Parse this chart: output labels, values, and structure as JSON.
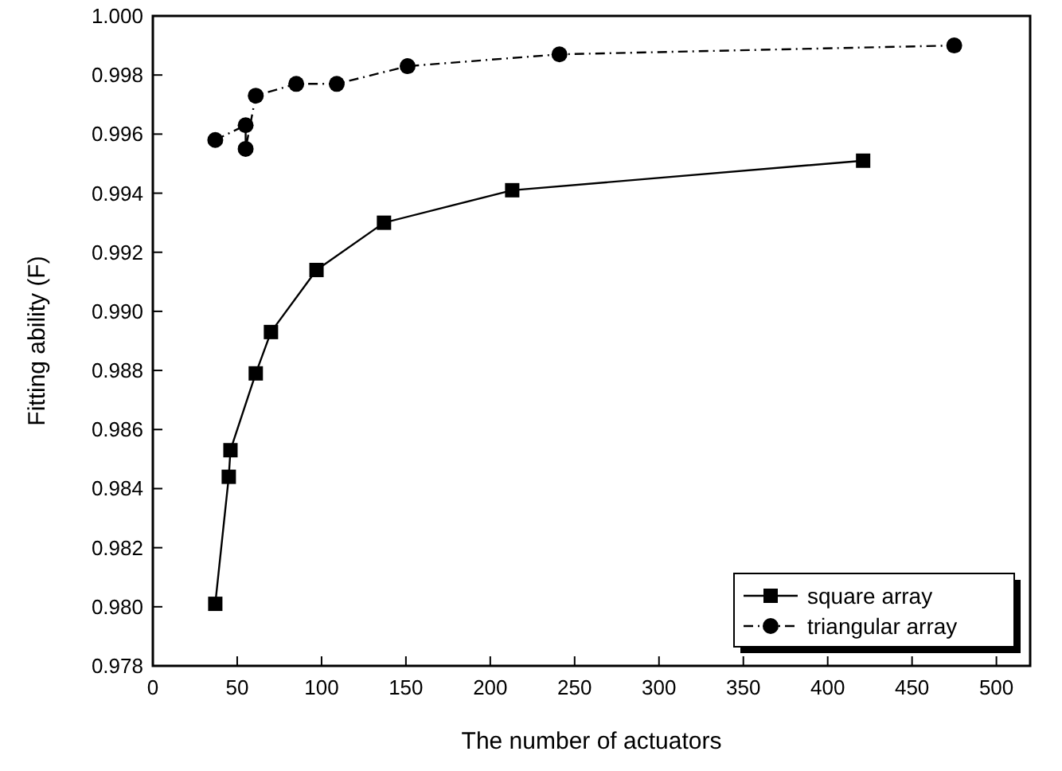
{
  "chart_data": {
    "type": "line",
    "xlabel": "The number of actuators",
    "ylabel": "Fitting ability (F)",
    "xlim": [
      0,
      520
    ],
    "xticks": [
      0,
      50,
      100,
      150,
      200,
      250,
      300,
      350,
      400,
      450,
      500
    ],
    "ylim": [
      0.978,
      1.0
    ],
    "yticks": [
      {
        "value": 0.978,
        "label": "0.978"
      },
      {
        "value": 0.98,
        "label": "0.980"
      },
      {
        "value": 0.982,
        "label": "0.982"
      },
      {
        "value": 0.984,
        "label": "0.984"
      },
      {
        "value": 0.986,
        "label": "0.986"
      },
      {
        "value": 0.988,
        "label": "0.988"
      },
      {
        "value": 0.99,
        "label": "0.990"
      },
      {
        "value": 0.992,
        "label": "0.992"
      },
      {
        "value": 0.994,
        "label": "0.994"
      },
      {
        "value": 0.996,
        "label": "0.996"
      },
      {
        "value": 0.998,
        "label": "0.998"
      },
      {
        "value": 1.0,
        "label": "1.000"
      }
    ],
    "grid": false,
    "legend": "bottom right",
    "series": [
      {
        "name": "square array",
        "color": "#000000",
        "marker": "square",
        "line_style": "solid",
        "x": [
          37,
          45,
          46,
          61,
          70,
          97,
          137,
          213,
          421
        ],
        "values": [
          0.9801,
          0.9844,
          0.9853,
          0.9879,
          0.9893,
          0.9914,
          0.993,
          0.9941,
          0.9951
        ]
      },
      {
        "name": "triangular array",
        "color": "#000000",
        "marker": "circle",
        "line_style": "dashed",
        "x": [
          37,
          55,
          55,
          61,
          85,
          109,
          151,
          241,
          475
        ],
        "values": [
          0.9958,
          0.9963,
          0.9955,
          0.9973,
          0.9977,
          0.9977,
          0.9983,
          0.9987,
          0.999
        ]
      }
    ]
  }
}
